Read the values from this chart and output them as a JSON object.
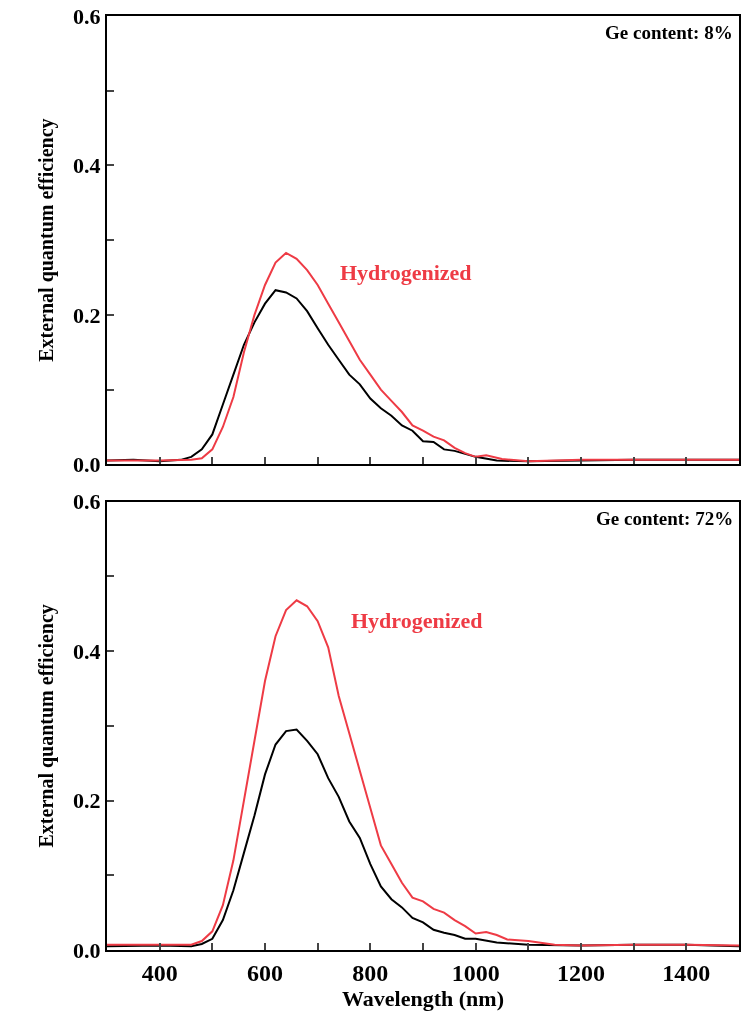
{
  "chart_data": [
    {
      "type": "line",
      "ylabel": "External quantum efficiency",
      "annotations": [
        "Ge content: 8%"
      ],
      "tick_labels": "y",
      "grid": false,
      "legend": false,
      "marker": "none",
      "line_style": "solid",
      "xlim": [
        300,
        1500
      ],
      "xticks": [
        400,
        {
          "value": 500,
          "label": null
        },
        600,
        {
          "value": 700,
          "label": null
        },
        800,
        {
          "value": 900,
          "label": null
        },
        1000,
        {
          "value": 1100,
          "label": null
        },
        1200,
        {
          "value": 1300,
          "label": null
        },
        1400
      ],
      "ylim": [
        0,
        0.6
      ],
      "yticks": [
        {
          "value": 0,
          "label": "0.0"
        },
        {
          "value": 0.1,
          "label": null
        },
        0.2,
        {
          "value": 0.3,
          "label": null
        },
        0.4,
        {
          "value": 0.5,
          "label": null
        },
        0.6
      ],
      "series": [
        {
          "color": "#000000",
          "x": [
            300,
            350,
            400,
            440,
            460,
            480,
            500,
            520,
            540,
            560,
            580,
            600,
            620,
            640,
            660,
            680,
            700,
            720,
            740,
            760,
            780,
            800,
            820,
            840,
            860,
            880,
            900,
            920,
            940,
            960,
            1000,
            1040,
            1100,
            1200,
            1300,
            1400,
            1500
          ],
          "values": [
            0.005,
            0.006,
            0.004,
            0.006,
            0.01,
            0.02,
            0.04,
            0.08,
            0.12,
            0.16,
            0.19,
            0.215,
            0.233,
            0.23,
            0.222,
            0.205,
            0.182,
            0.16,
            0.14,
            0.12,
            0.107,
            0.088,
            0.075,
            0.065,
            0.052,
            0.045,
            0.031,
            0.03,
            0.02,
            0.018,
            0.01,
            0.005,
            0.004,
            0.005,
            0.006,
            0.006,
            0.006
          ]
        },
        {
          "name": "Hydrogenized",
          "color": "#ee3b45",
          "x": [
            300,
            400,
            460,
            480,
            500,
            520,
            540,
            560,
            580,
            600,
            620,
            640,
            660,
            680,
            700,
            720,
            740,
            760,
            780,
            800,
            820,
            840,
            860,
            880,
            900,
            920,
            940,
            960,
            980,
            1000,
            1020,
            1050,
            1100,
            1200,
            1300,
            1400,
            1500
          ],
          "values": [
            0.005,
            0.005,
            0.006,
            0.008,
            0.02,
            0.05,
            0.09,
            0.15,
            0.2,
            0.24,
            0.27,
            0.283,
            0.275,
            0.26,
            0.24,
            0.215,
            0.19,
            0.165,
            0.14,
            0.12,
            0.1,
            0.085,
            0.07,
            0.052,
            0.045,
            0.037,
            0.032,
            0.022,
            0.015,
            0.01,
            0.012,
            0.007,
            0.004,
            0.006,
            0.006,
            0.006,
            0.006
          ]
        }
      ]
    },
    {
      "type": "line",
      "xlabel": "Wavelength (nm)",
      "ylabel": "External quantum efficiency",
      "annotations": [
        "Ge content: 72%"
      ],
      "grid": false,
      "legend": false,
      "marker": "none",
      "line_style": "solid",
      "xlim": [
        300,
        1500
      ],
      "xticks": [
        400,
        {
          "value": 500,
          "label": null
        },
        600,
        {
          "value": 700,
          "label": null
        },
        800,
        {
          "value": 900,
          "label": null
        },
        1000,
        {
          "value": 1100,
          "label": null
        },
        1200,
        {
          "value": 1300,
          "label": null
        },
        1400
      ],
      "ylim": [
        0,
        0.6
      ],
      "yticks": [
        {
          "value": 0,
          "label": "0.0"
        },
        {
          "value": 0.1,
          "label": null
        },
        0.2,
        {
          "value": 0.3,
          "label": null
        },
        0.4,
        {
          "value": 0.5,
          "label": null
        },
        0.6
      ],
      "series": [
        {
          "color": "#000000",
          "x": [
            300,
            400,
            460,
            480,
            500,
            520,
            540,
            560,
            580,
            600,
            620,
            640,
            660,
            680,
            700,
            720,
            740,
            760,
            780,
            800,
            820,
            840,
            860,
            880,
            900,
            920,
            940,
            960,
            980,
            1000,
            1040,
            1100,
            1200,
            1300,
            1400,
            1500
          ],
          "values": [
            0.005,
            0.006,
            0.005,
            0.008,
            0.015,
            0.04,
            0.08,
            0.13,
            0.18,
            0.235,
            0.275,
            0.293,
            0.295,
            0.28,
            0.262,
            0.23,
            0.205,
            0.172,
            0.15,
            0.115,
            0.085,
            0.068,
            0.057,
            0.043,
            0.037,
            0.027,
            0.023,
            0.02,
            0.015,
            0.015,
            0.01,
            0.007,
            0.006,
            0.007,
            0.007,
            0.005
          ]
        },
        {
          "name": "Hydrogenized",
          "color": "#ee3b45",
          "x": [
            300,
            400,
            460,
            480,
            500,
            520,
            540,
            560,
            580,
            600,
            620,
            640,
            660,
            680,
            700,
            720,
            740,
            760,
            780,
            800,
            820,
            840,
            860,
            880,
            900,
            920,
            940,
            960,
            980,
            1000,
            1020,
            1040,
            1060,
            1100,
            1150,
            1200,
            1300,
            1400,
            1500
          ],
          "values": [
            0.007,
            0.007,
            0.007,
            0.012,
            0.025,
            0.06,
            0.12,
            0.2,
            0.28,
            0.36,
            0.42,
            0.455,
            0.468,
            0.46,
            0.44,
            0.405,
            0.34,
            0.29,
            0.24,
            0.19,
            0.14,
            0.115,
            0.09,
            0.07,
            0.065,
            0.055,
            0.05,
            0.04,
            0.032,
            0.022,
            0.024,
            0.02,
            0.014,
            0.012,
            0.007,
            0.006,
            0.007,
            0.007,
            0.006
          ]
        }
      ]
    }
  ]
}
